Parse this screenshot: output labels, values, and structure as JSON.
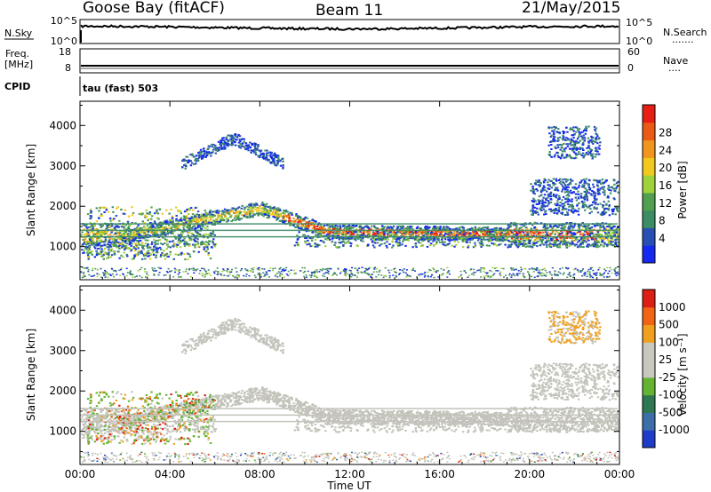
{
  "header": {
    "station": "Goose Bay (fitACF)",
    "beam": "Beam 11",
    "date": "21/May/2015"
  },
  "sky_panel": {
    "left_label": "N.Sky",
    "left_ticks": [
      "10^5",
      "10^0"
    ],
    "right_ticks": [
      "10^5",
      "10^0"
    ],
    "right_label": "N.Search",
    "right_legend_dots": "......."
  },
  "freq_panel": {
    "label_line1": "Freq.",
    "label_line2": "[MHz]",
    "left_ticks": [
      "18",
      "8"
    ],
    "right_ticks": [
      "60",
      "0"
    ],
    "right_label": "Nave",
    "right_legend_dots": "....",
    "cpid_label": "CPID",
    "cpid_value": "tau (fast) 503"
  },
  "colors": {
    "power_scale": [
      "#1428f0",
      "#2850b4",
      "#3c8c64",
      "#50a050",
      "#a0d23c",
      "#f0c81e",
      "#f0961e",
      "#eb5a14",
      "#e61e14"
    ],
    "velocity_scale": [
      "#1e3cc8",
      "#3c6eaa",
      "#2d7850",
      "#64b432",
      "#c8c8c0",
      "#c8c8c0",
      "#f0a01e",
      "#f06414",
      "#dc1e14"
    ],
    "ground_scatter": "#c3c3bb"
  },
  "chart_data": [
    {
      "type": "heatmap",
      "panel": "power",
      "xlabel": "",
      "ylabel": "Slant Range [km]",
      "yticks": [
        "1000",
        "2000",
        "3000",
        "4000"
      ],
      "colorbar_label": "Power [dB]",
      "colorbar_ticks": [
        "4",
        "8",
        "12",
        "16",
        "20",
        "24",
        "28"
      ],
      "colorbar_range": [
        0,
        32
      ],
      "x_range_hours": [
        0,
        24
      ],
      "y_range_km": [
        180,
        4600
      ]
    },
    {
      "type": "heatmap",
      "panel": "velocity",
      "xlabel": "Time UT",
      "ylabel": "Slant Range [km]",
      "xticks": [
        "00:00",
        "04:00",
        "08:00",
        "12:00",
        "16:00",
        "20:00",
        "00:00"
      ],
      "yticks": [
        "1000",
        "2000",
        "3000",
        "4000"
      ],
      "colorbar_label": "Velocity [m s⁻¹]",
      "colorbar_ticks": [
        "1000",
        "500",
        "100",
        "25",
        "-25",
        "-100",
        "-500",
        "-1000"
      ],
      "x_range_hours": [
        0,
        24
      ],
      "y_range_km": [
        180,
        4600
      ]
    }
  ]
}
